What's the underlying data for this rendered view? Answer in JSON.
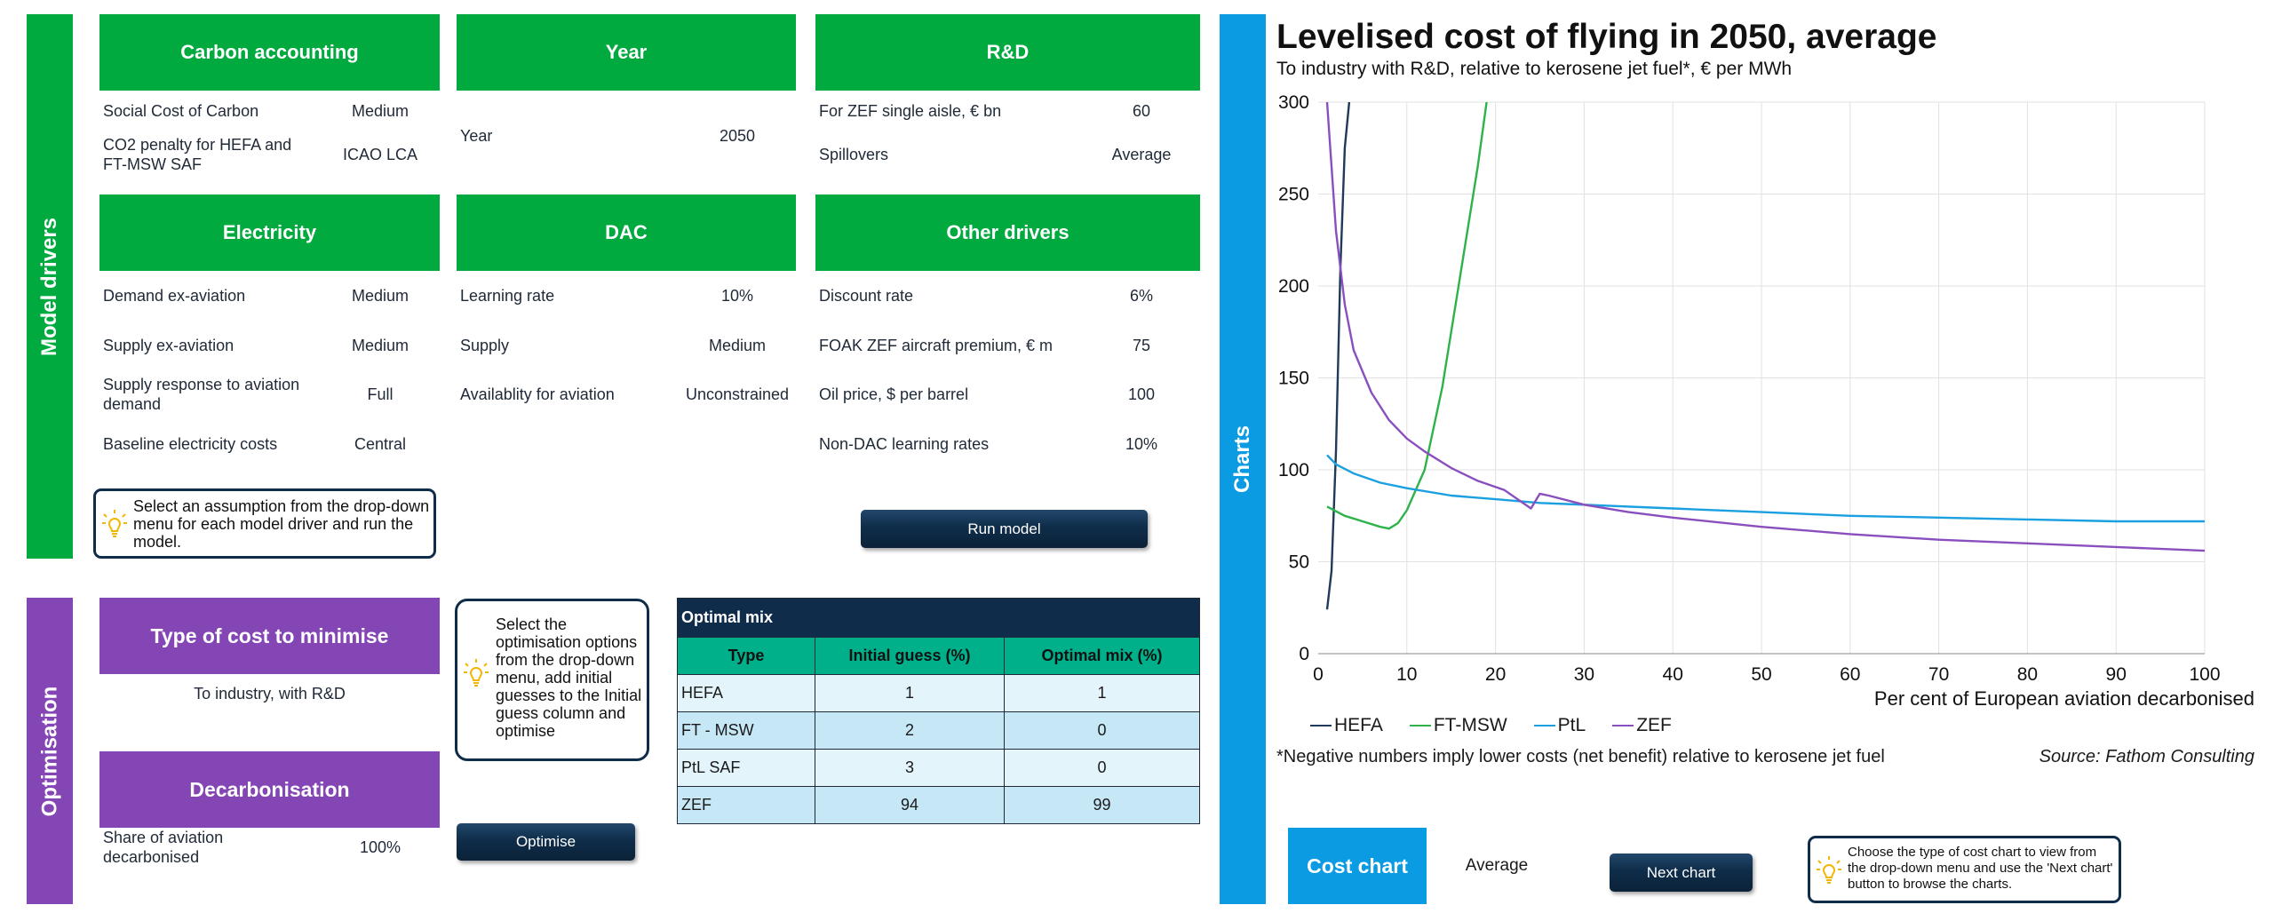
{
  "model_drivers": {
    "label": "Model drivers",
    "carbon": {
      "title": "Carbon accounting",
      "rows": [
        {
          "label": "Social Cost of Carbon",
          "value": "Medium"
        },
        {
          "label": "CO2 penalty for HEFA and FT-MSW SAF",
          "value": "ICAO LCA"
        }
      ]
    },
    "year": {
      "title": "Year",
      "rows": [
        {
          "label": "Year",
          "value": "2050"
        }
      ]
    },
    "rnd": {
      "title": "R&D",
      "rows": [
        {
          "label": "For ZEF single aisle, € bn",
          "value": "60"
        },
        {
          "label": "Spillovers",
          "value": "Average"
        }
      ]
    },
    "electricity": {
      "title": "Electricity",
      "rows": [
        {
          "label": "Demand ex-aviation",
          "value": "Medium"
        },
        {
          "label": "Supply ex-aviation",
          "value": "Medium"
        },
        {
          "label": "Supply response to aviation demand",
          "value": "Full"
        },
        {
          "label": "Baseline electricity costs",
          "value": "Central"
        }
      ]
    },
    "dac": {
      "title": "DAC",
      "rows": [
        {
          "label": "Learning rate",
          "value": "10%"
        },
        {
          "label": "Supply",
          "value": "Medium"
        },
        {
          "label": "Availablity for aviation",
          "value": "Unconstrained"
        }
      ]
    },
    "other": {
      "title": "Other drivers",
      "rows": [
        {
          "label": "Discount rate",
          "value": "6%"
        },
        {
          "label": "FOAK ZEF aircraft premium, € m",
          "value": "75"
        },
        {
          "label": "Oil price, $ per barrel",
          "value": "100"
        },
        {
          "label": "Non-DAC learning rates",
          "value": "10%"
        }
      ]
    },
    "hint": "Select an assumption from the drop-down menu for each model driver and run the model.",
    "run_button": "Run model"
  },
  "optimisation": {
    "label": "Optimisation",
    "cost_type": {
      "title": "Type of cost to minimise",
      "value": "To industry, with R&D"
    },
    "decarb": {
      "title": "Decarbonisation",
      "label": "Share of aviation decarbonised",
      "value": "100%"
    },
    "hint": "Select the optimisation options from the drop-down menu, add initial guesses to the Initial guess column and optimise",
    "optimise_button": "Optimise",
    "table": {
      "title": "Optimal mix",
      "headers": [
        "Type",
        "Initial guess (%)",
        "Optimal mix (%)"
      ],
      "rows": [
        [
          "HEFA",
          "1",
          "1"
        ],
        [
          "FT - MSW",
          "2",
          "0"
        ],
        [
          "PtL SAF",
          "3",
          "0"
        ],
        [
          "ZEF",
          "94",
          "99"
        ]
      ]
    }
  },
  "charts_panel": {
    "label": "Charts",
    "cost_chart_label": "Cost chart",
    "cost_chart_value": "Average",
    "next_button": "Next chart",
    "hint": "Choose the type of cost chart to view from the drop-down menu and use the 'Next chart' button to browse the charts.",
    "footnote": "*Negative numbers imply lower costs (net benefit) relative to kerosene jet fuel",
    "source": "Source: Fathom Consulting"
  },
  "colors": {
    "green": "#00aa3f",
    "purple": "#8445b5",
    "blue": "#0b9be3",
    "navy": "#0f2d4a",
    "teal": "#00b08b",
    "table_light": "#c6e8f6"
  },
  "chart_data": {
    "type": "line",
    "title": "Levelised cost of flying in 2050, average",
    "subtitle": "To industry with R&D, relative to kerosene jet fuel*, € per MWh",
    "xlabel": "Per cent of European aviation decarbonised",
    "ylabel": "",
    "xlim": [
      0,
      100
    ],
    "ylim": [
      0,
      300
    ],
    "xticks": [
      0,
      10,
      20,
      30,
      40,
      50,
      60,
      70,
      80,
      90,
      100
    ],
    "yticks": [
      0,
      50,
      100,
      150,
      200,
      250,
      300
    ],
    "grid": true,
    "legend": "bottom-left",
    "series": [
      {
        "name": "HEFA",
        "color": "#1f3a5a",
        "x": [
          1,
          1.5,
          2,
          2.5,
          3,
          3.5
        ],
        "y": [
          24,
          45,
          110,
          210,
          275,
          300
        ]
      },
      {
        "name": "FT-MSW",
        "color": "#2db34a",
        "x": [
          1,
          3,
          5,
          7,
          8,
          9,
          10,
          12,
          14,
          16,
          18,
          19
        ],
        "y": [
          80,
          75,
          72,
          69,
          68,
          71,
          78,
          100,
          145,
          205,
          265,
          300
        ]
      },
      {
        "name": "PtL",
        "color": "#1a9fe0",
        "x": [
          1,
          2,
          4,
          7,
          10,
          15,
          20,
          25,
          30,
          40,
          50,
          60,
          70,
          80,
          90,
          100
        ],
        "y": [
          108,
          103,
          98,
          93,
          90,
          86,
          84,
          82,
          81,
          79,
          77,
          75,
          74,
          73,
          72,
          72
        ]
      },
      {
        "name": "ZEF",
        "color": "#8a4fbf",
        "x": [
          1,
          1.5,
          2,
          3,
          4,
          6,
          8,
          10,
          12,
          15,
          18,
          21,
          24,
          25,
          26,
          30,
          35,
          40,
          50,
          60,
          70,
          80,
          90,
          100
        ],
        "y": [
          300,
          265,
          230,
          190,
          165,
          142,
          127,
          117,
          110,
          101,
          94,
          89,
          79,
          87,
          86,
          81,
          77,
          74,
          69,
          65,
          62,
          60,
          58,
          56
        ]
      }
    ]
  }
}
